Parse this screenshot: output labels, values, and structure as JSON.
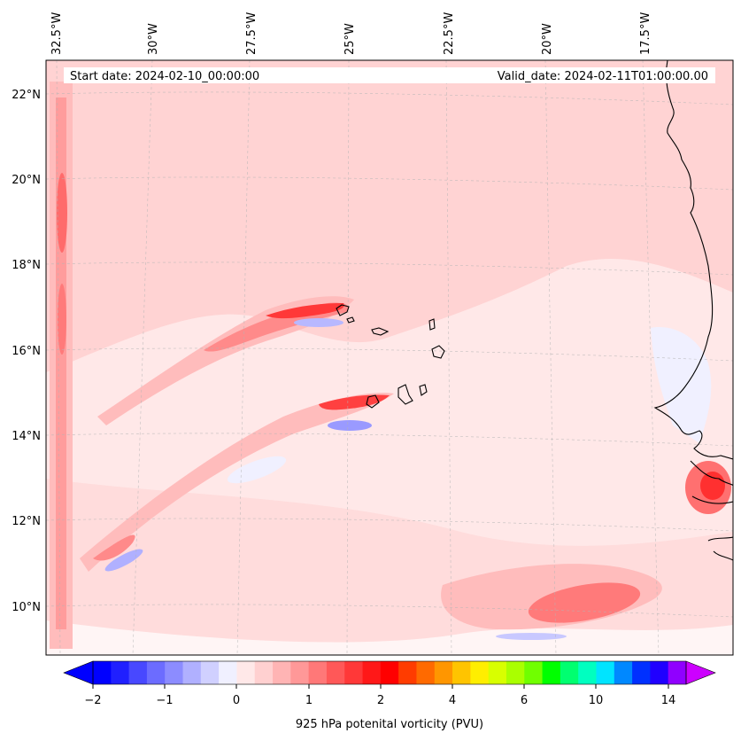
{
  "map": {
    "start_date_label": "Start date: 2024-02-10_00:00:00",
    "valid_date_label": "Valid_date: 2024-02-11T01:00:00.00",
    "lon_labels": [
      "32.5°W",
      "30°W",
      "27.5°W",
      "25°W",
      "22.5°W",
      "20°W",
      "17.5°W"
    ],
    "lat_labels": [
      "22°N",
      "20°N",
      "18°N",
      "16°N",
      "14°N",
      "12°N",
      "10°N"
    ],
    "colorbar": {
      "title": "925 hPa potenital vorticity (PVU)",
      "tick_labels": [
        "−2",
        "−1",
        "0",
        "1",
        "2",
        "4",
        "6",
        "10",
        "14"
      ],
      "colors": [
        "#0000ff",
        "#2020ff",
        "#4848ff",
        "#6c6cff",
        "#8c8cff",
        "#b0b0ff",
        "#d0d0ff",
        "#f0f0ff",
        "#ffe8e8",
        "#ffd0d0",
        "#ffb4b4",
        "#ff9898",
        "#ff7878",
        "#ff5858",
        "#ff3838",
        "#ff1818",
        "#ff0000",
        "#ff3c00",
        "#ff6a00",
        "#ff9600",
        "#ffc400",
        "#ffee00",
        "#d8ff00",
        "#aaff00",
        "#70ff00",
        "#00ff00",
        "#00ff70",
        "#00ffc0",
        "#00e4ff",
        "#0088ff",
        "#0030ff",
        "#2000ff",
        "#9000ff"
      ]
    }
  }
}
